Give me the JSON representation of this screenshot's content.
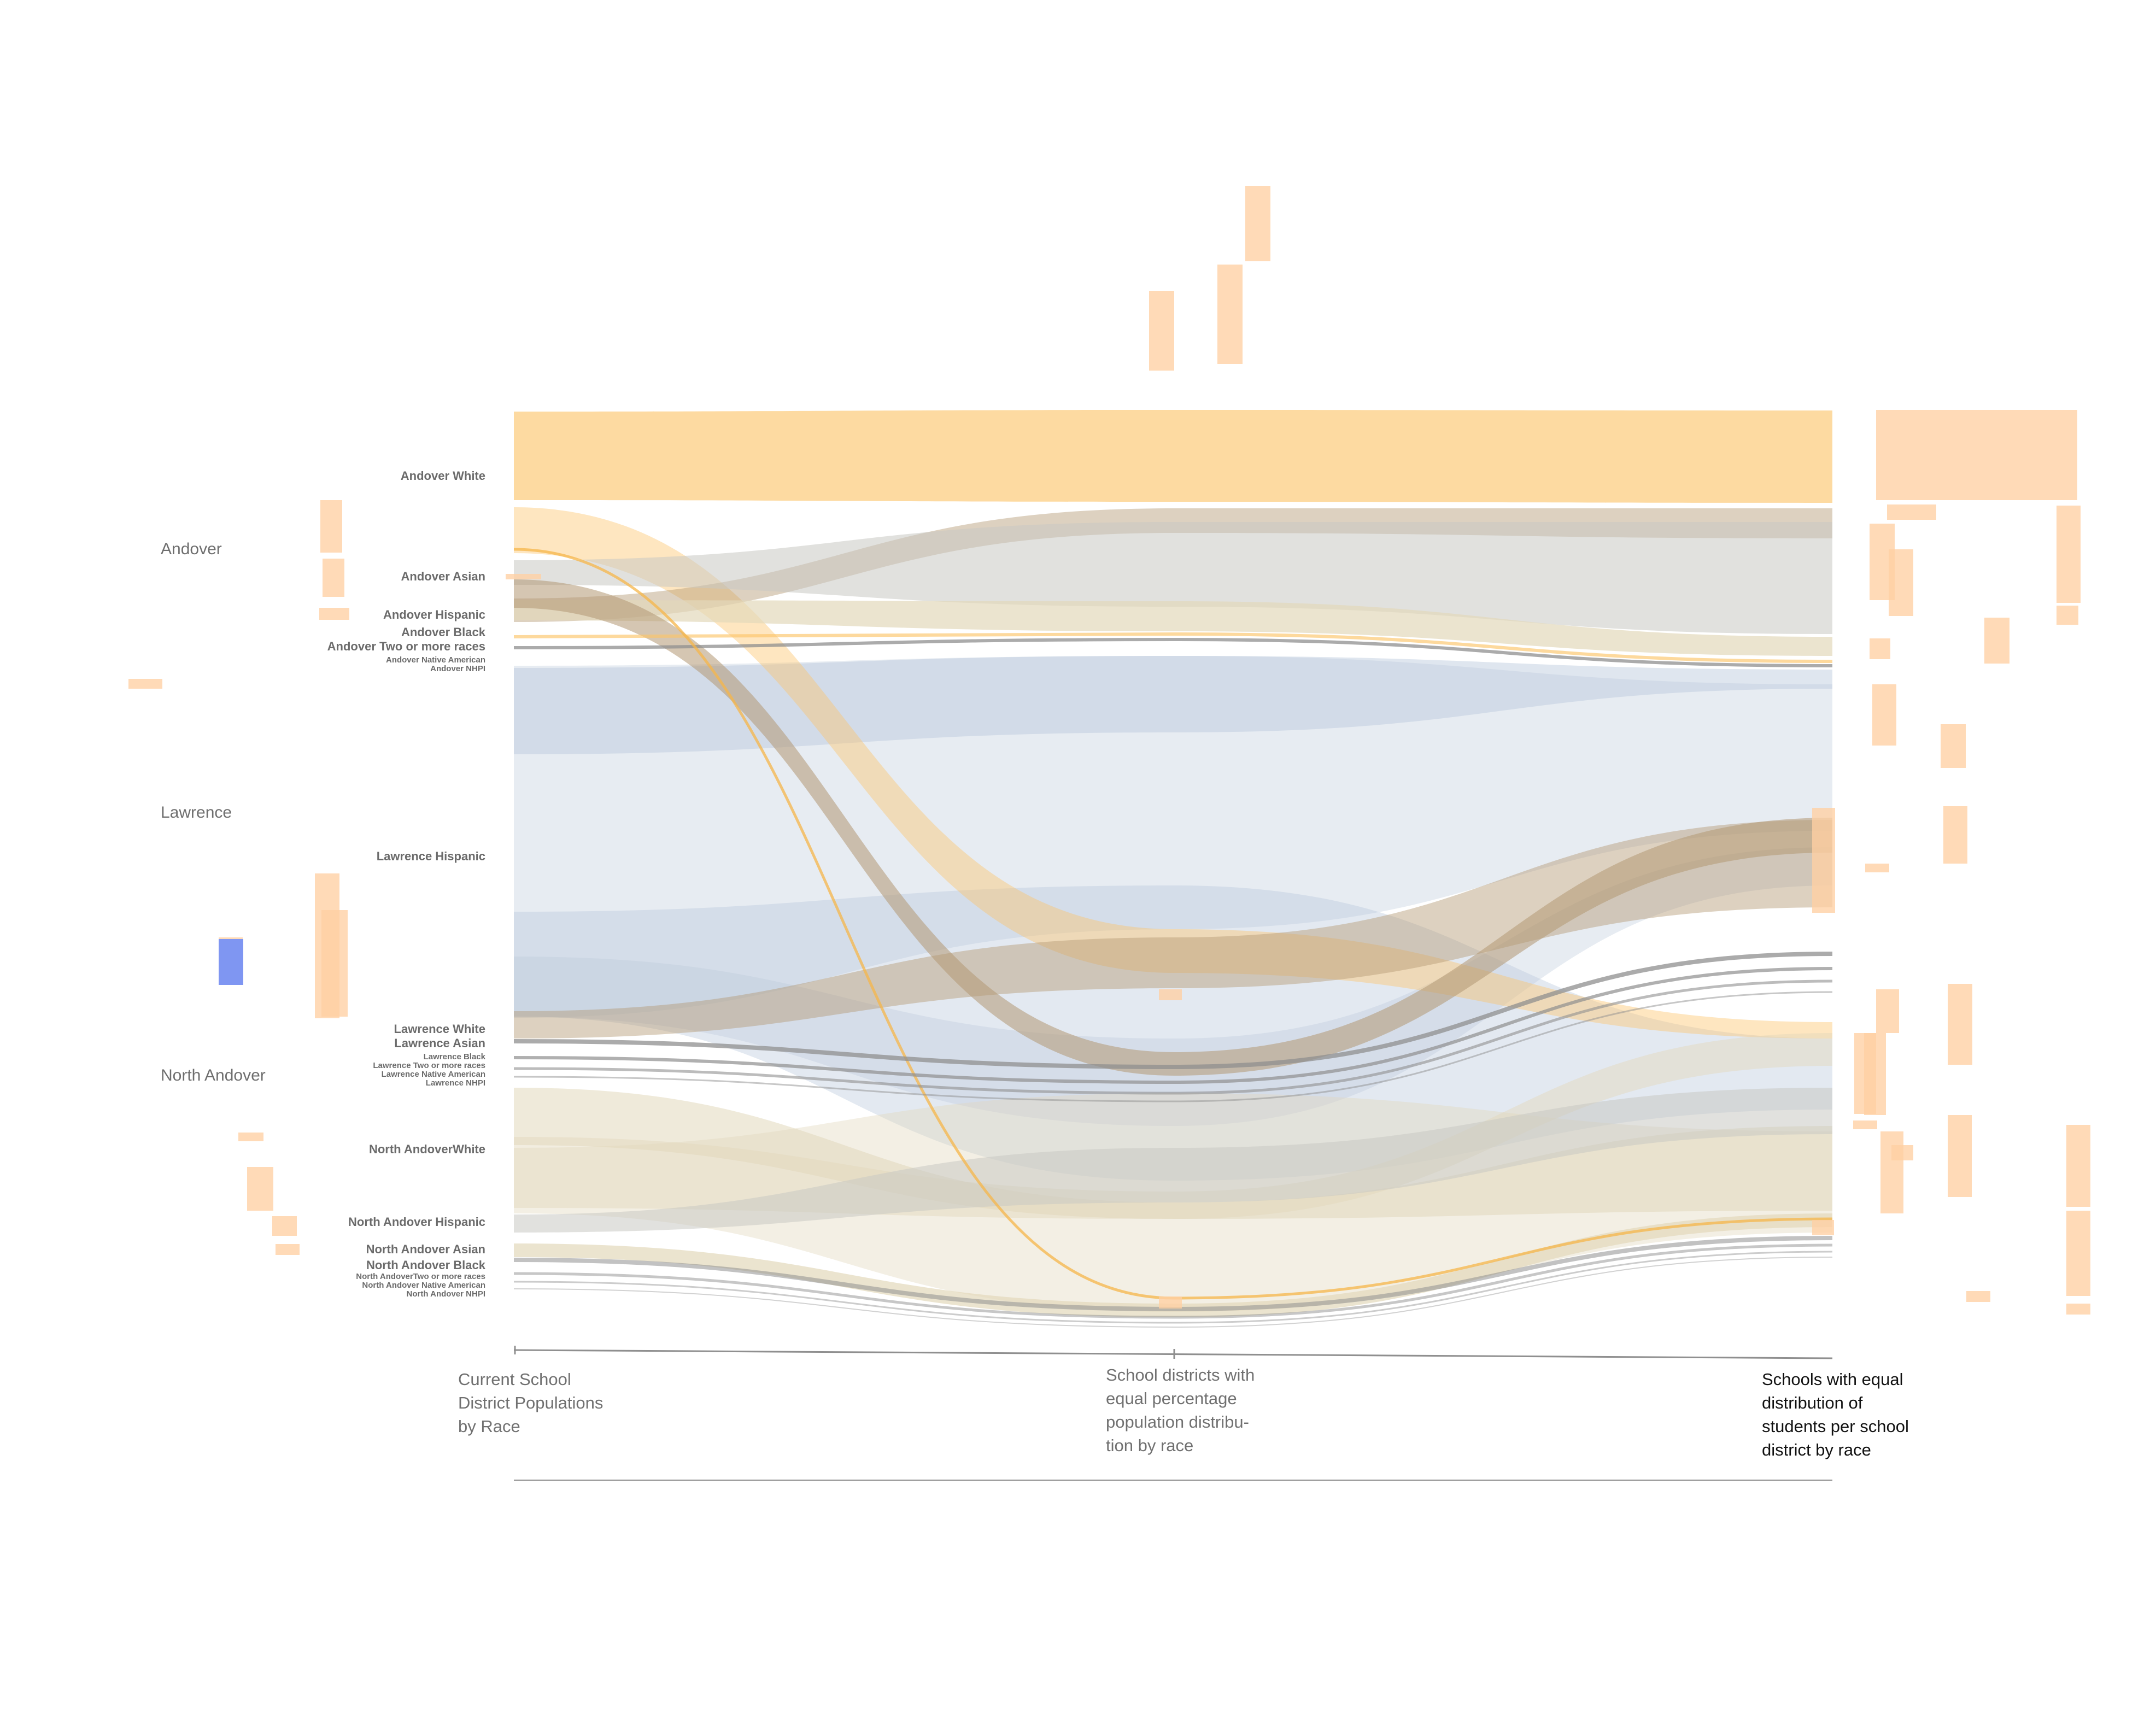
{
  "districts": [
    {
      "id": "andover",
      "name": "Andover"
    },
    {
      "id": "lawrence",
      "name": "Lawrence"
    },
    {
      "id": "north-andover",
      "name": "North Andover"
    }
  ],
  "groups": [
    {
      "id": "andover-white",
      "label": "Andover White",
      "district": "andover"
    },
    {
      "id": "andover-asian",
      "label": "Andover Asian",
      "district": "andover"
    },
    {
      "id": "andover-hispanic",
      "label": "Andover Hispanic",
      "district": "andover"
    },
    {
      "id": "andover-black",
      "label": "Andover Black",
      "district": "andover"
    },
    {
      "id": "andover-two",
      "label": "Andover Two or more races",
      "district": "andover"
    },
    {
      "id": "andover-native",
      "label": "Andover Native American",
      "district": "andover"
    },
    {
      "id": "andover-nhpi",
      "label": "Andover NHPI",
      "district": "andover"
    },
    {
      "id": "lawrence-hispanic",
      "label": "Lawrence Hispanic",
      "district": "lawrence"
    },
    {
      "id": "lawrence-white",
      "label": "Lawrence White",
      "district": "lawrence"
    },
    {
      "id": "lawrence-asian",
      "label": "Lawrence Asian",
      "district": "lawrence"
    },
    {
      "id": "lawrence-black",
      "label": "Lawrence Black",
      "district": "lawrence"
    },
    {
      "id": "lawrence-two",
      "label": "Lawrence Two or more races",
      "district": "lawrence"
    },
    {
      "id": "lawrence-native",
      "label": "Lawrence Native American",
      "district": "lawrence"
    },
    {
      "id": "lawrence-nhpi",
      "label": "Lawrence NHPI",
      "district": "lawrence"
    },
    {
      "id": "na-white",
      "label": "North AndoverWhite",
      "district": "north-andover"
    },
    {
      "id": "na-hispanic",
      "label": "North Andover Hispanic",
      "district": "north-andover"
    },
    {
      "id": "na-asian",
      "label": "North Andover Asian",
      "district": "north-andover"
    },
    {
      "id": "na-black",
      "label": "North Andover Black",
      "district": "north-andover"
    },
    {
      "id": "na-two",
      "label": "North AndoverTwo or more races",
      "district": "north-andover"
    },
    {
      "id": "na-native",
      "label": "North Andover Native American",
      "district": "north-andover"
    },
    {
      "id": "na-nhpi",
      "label": "North Andover NHPI",
      "district": "north-andover"
    }
  ],
  "stages": [
    {
      "id": "current",
      "caption": "Current School\nDistrict Populations\nby Race"
    },
    {
      "id": "equal-percentage",
      "caption": "School districts with\nequal percentage\npopulation distribu-\ntion by race"
    },
    {
      "id": "equal-schools",
      "caption": "Schools with equal\ndistribution of\nstudents per school\ndistrict by race"
    }
  ],
  "colors": {
    "andover": "#fcc468",
    "lawrence": "#b9c8db",
    "north_andover": "#e2d8bb",
    "brown": "#b39873",
    "gray_line": "#8f8f8f",
    "marker": "#ffcfa3",
    "blue_marker": "#7f96f2",
    "axis": "#8f8f8f"
  }
}
